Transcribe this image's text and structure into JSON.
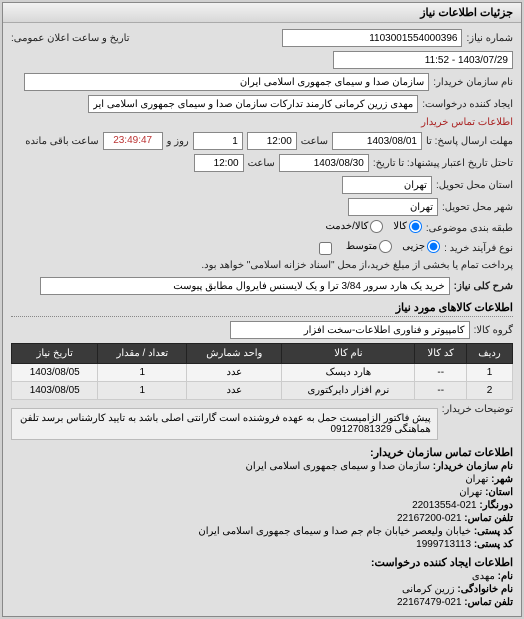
{
  "panelTitle": "جزئیات اطلاعات نیاز",
  "labels": {
    "reqNo": "شماره نیاز:",
    "pubDateTime": "تاریخ و ساعت اعلان عمومی:",
    "buyerName": "نام سازمان خریدار:",
    "requester": "ایجاد کننده درخواست:",
    "replyDeadlineTo": "مهلت ارسال پاسخ: تا",
    "creditAcceptTo": "تاحتل تاریخ اعتبار پیشنهاد: تا تاریخ:",
    "time": "ساعت",
    "remainLbl": "روز و",
    "remainSuffix": "ساعت باقی مانده",
    "deliveryProvince": "استان محل تحویل:",
    "deliveryCity": "شهر محل تحویل:",
    "packaging": "طبقه بندی موضوعی:",
    "buyType": "نوع فرآیند خرید :",
    "buyNote": "پرداخت تمام یا بخشی از مبلغ خرید،از محل \"اسناد خزانه اسلامی\" خواهد بود.",
    "keyTitle": "شرح کلی نیاز:",
    "goodsInfo": "اطلاعات کالاهای مورد نیاز",
    "goodsGroup": "گروه کالا:",
    "buyerNotes": "توضیحات خریدار:",
    "contactBuyer": "اطلاعات تماس سازمان خریدار:",
    "contactRequester": "اطلاعات ایجاد کننده درخواست:",
    "orgName": "نام سازمان خریدار:",
    "city": "شهر:",
    "province": "استان:",
    "fax": "دورنگار:",
    "phone": "تلفن تماس:",
    "postalAddr": "کد پستی:",
    "postalCode": "کد پستی:",
    "name": "نام:",
    "family": "نام خانوادگی:",
    "buyerContactLink": "اطلاعات تماس خریدار"
  },
  "values": {
    "reqNo": "1103001554000396",
    "pubDateTime": "1403/07/29 - 11:52",
    "buyerName": "سازمان صدا و سیمای جمهوری اسلامی ایران",
    "requester": "مهدی زرین کرمانی کارمند تدارکات سازمان صدا و سیمای جمهوری اسلامی ایران",
    "deadlineDate": "1403/08/01",
    "deadlineTime": "12:00",
    "remainDays": "1",
    "remainClock": "23:49:47",
    "creditDate": "1403/08/30",
    "creditTime": "12:00",
    "province": "تهران",
    "city": "تهران",
    "keyTitle": "خرید یک هارد سرور 3/84 ترا و یک لایسنس فایروال مطابق پیوست",
    "goodsGroup": "کامپیوتر و فناوری اطلاعات-سخت افزار",
    "buyerNotes": "پیش فاکتور الزامیست حمل به عهده فروشنده است گارانتی اصلی باشد به تایید کارشناس برسد تلفن هماهنگی 09127081329",
    "org": "سازمان صدا و سیمای جمهوری اسلامی ایران",
    "cityVal": "تهران",
    "provinceVal": "تهران",
    "faxVal": "021-22013554",
    "phoneVal": "021-22167200",
    "postalAddrVal": "خیابان ولیعصر خیابان جام جم صدا و سیمای جمهوری اسلامی ایران",
    "postalCodeVal": "1999713113",
    "reqName": "مهدی",
    "reqFamily": "زرین کرمانی",
    "reqPhone": "021-22167479"
  },
  "radios": {
    "pkg": [
      {
        "label": "کالا",
        "checked": true
      },
      {
        "label": "کالا/خدمت",
        "checked": false
      }
    ],
    "buy": [
      {
        "label": "جزیی",
        "checked": true
      },
      {
        "label": "متوسط",
        "checked": false
      }
    ]
  },
  "table": {
    "headers": [
      "ردیف",
      "کد کالا",
      "نام کالا",
      "واحد شمارش",
      "تعداد / مقدار",
      "تاریخ نیاز"
    ],
    "rows": [
      [
        "1",
        "--",
        "هارد دیسک",
        "عدد",
        "1",
        "1403/08/05"
      ],
      [
        "2",
        "--",
        "نرم افزار دایرکتوری",
        "عدد",
        "1",
        "1403/08/05"
      ]
    ]
  }
}
